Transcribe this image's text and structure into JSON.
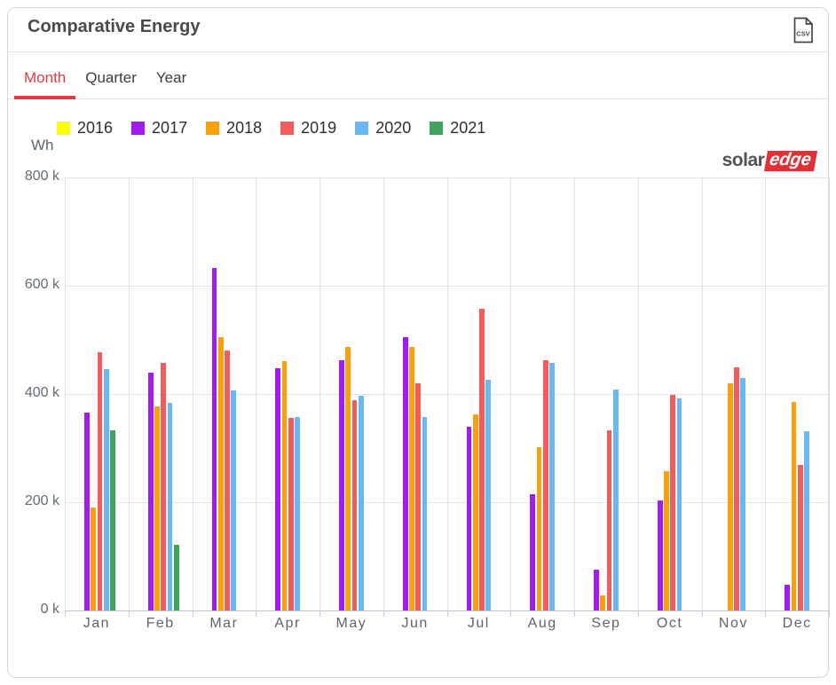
{
  "header": {
    "title": "Comparative Energy",
    "csv_icon_text": "CSV"
  },
  "tabs": [
    {
      "label": "Month",
      "active": true
    },
    {
      "label": "Quarter",
      "active": false
    },
    {
      "label": "Year",
      "active": false
    }
  ],
  "unit_label": "Wh",
  "logo": {
    "part1": "solar",
    "part2": "edge"
  },
  "colors": {
    "active_tab_red": "#e03b41",
    "logo_red": "#e03136",
    "grid": "#e0e6ee",
    "axis": "#bdc6d2"
  },
  "chart_data": {
    "type": "bar",
    "title": "Comparative Energy",
    "ylabel": "Wh",
    "categories": [
      "Jan",
      "Feb",
      "Mar",
      "Apr",
      "May",
      "Jun",
      "Jul",
      "Aug",
      "Sep",
      "Oct",
      "Nov",
      "Dec"
    ],
    "series": [
      {
        "name": "2016",
        "color": "#fbff00",
        "values": [
          null,
          null,
          null,
          null,
          null,
          null,
          null,
          null,
          null,
          null,
          null,
          null
        ]
      },
      {
        "name": "2017",
        "color": "#a41bef",
        "values": [
          365000,
          439000,
          633000,
          448000,
          462000,
          505000,
          339000,
          214000,
          76000,
          203000,
          null,
          47000
        ]
      },
      {
        "name": "2018",
        "color": "#f9a00b",
        "values": [
          190000,
          377000,
          505000,
          460000,
          487000,
          487000,
          362000,
          302000,
          28000,
          258000,
          419000,
          385000
        ]
      },
      {
        "name": "2019",
        "color": "#f45c5c",
        "values": [
          477000,
          457000,
          481000,
          355000,
          388000,
          419000,
          558000,
          462000,
          332000,
          399000,
          450000,
          269000
        ]
      },
      {
        "name": "2020",
        "color": "#69b8f3",
        "values": [
          446000,
          383000,
          407000,
          357000,
          397000,
          358000,
          426000,
          457000,
          409000,
          392000,
          429000,
          331000
        ]
      },
      {
        "name": "2021",
        "color": "#40a45f",
        "values": [
          333000,
          122000,
          null,
          null,
          null,
          null,
          null,
          null,
          null,
          null,
          null,
          null
        ]
      }
    ],
    "ylim": [
      0,
      800000
    ],
    "ytick_values": [
      0,
      200000,
      400000,
      600000,
      800000
    ],
    "ytick_labels": [
      "0 k",
      "200 k",
      "400 k",
      "600 k",
      "800 k"
    ],
    "grid": true,
    "legend_position": "top"
  }
}
